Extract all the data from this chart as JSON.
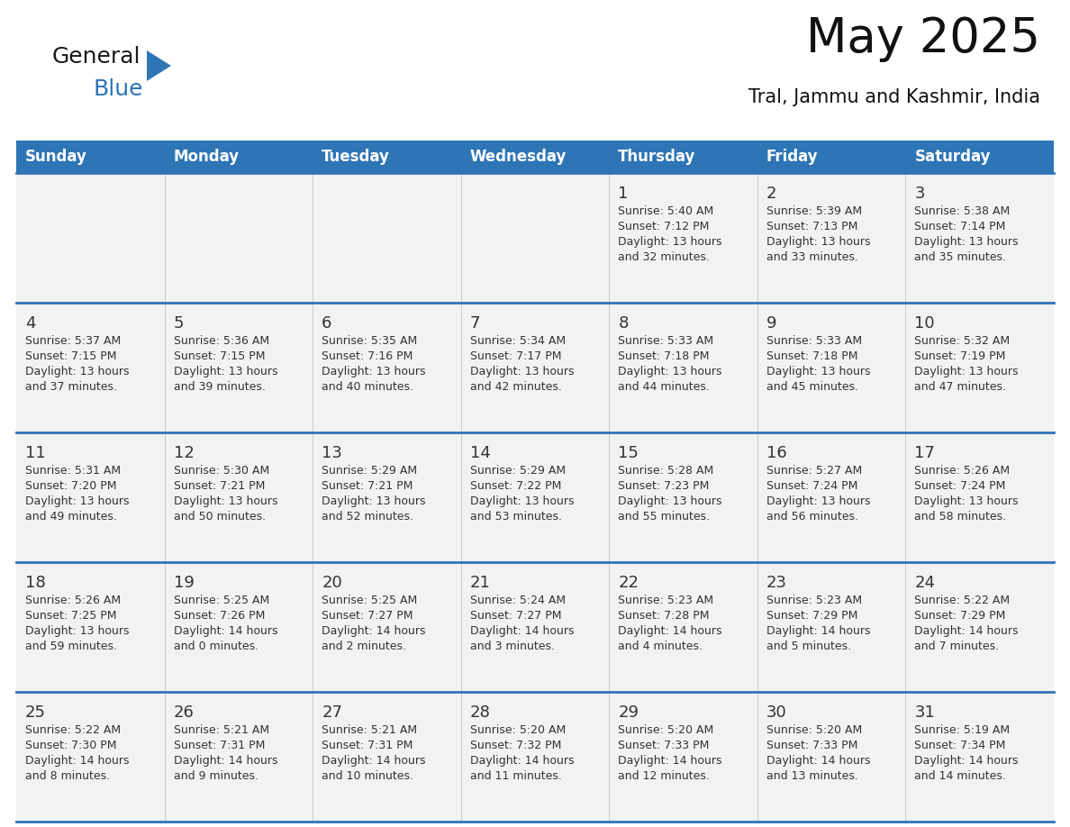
{
  "title": "May 2025",
  "subtitle": "Tral, Jammu and Kashmir, India",
  "days_of_week": [
    "Sunday",
    "Monday",
    "Tuesday",
    "Wednesday",
    "Thursday",
    "Friday",
    "Saturday"
  ],
  "header_bg": "#2E75B6",
  "header_text": "#FFFFFF",
  "cell_bg_odd": "#F2F2F2",
  "cell_bg_even": "#FFFFFF",
  "row_line_color": "#2E75B6",
  "text_color": "#333333",
  "logo_general_color": "#1a1a1a",
  "logo_blue_color": "#2E75B6",
  "logo_triangle_color": "#2E75B6",
  "title_fontsize": 38,
  "subtitle_fontsize": 15,
  "header_fontsize": 12,
  "day_num_fontsize": 13,
  "cell_fontsize": 9,
  "calendar_data": [
    [
      null,
      null,
      null,
      null,
      {
        "day": 1,
        "sunrise": "5:40 AM",
        "sunset": "7:12 PM",
        "daylight": "13 hours and 32 minutes."
      },
      {
        "day": 2,
        "sunrise": "5:39 AM",
        "sunset": "7:13 PM",
        "daylight": "13 hours and 33 minutes."
      },
      {
        "day": 3,
        "sunrise": "5:38 AM",
        "sunset": "7:14 PM",
        "daylight": "13 hours and 35 minutes."
      }
    ],
    [
      {
        "day": 4,
        "sunrise": "5:37 AM",
        "sunset": "7:15 PM",
        "daylight": "13 hours and 37 minutes."
      },
      {
        "day": 5,
        "sunrise": "5:36 AM",
        "sunset": "7:15 PM",
        "daylight": "13 hours and 39 minutes."
      },
      {
        "day": 6,
        "sunrise": "5:35 AM",
        "sunset": "7:16 PM",
        "daylight": "13 hours and 40 minutes."
      },
      {
        "day": 7,
        "sunrise": "5:34 AM",
        "sunset": "7:17 PM",
        "daylight": "13 hours and 42 minutes."
      },
      {
        "day": 8,
        "sunrise": "5:33 AM",
        "sunset": "7:18 PM",
        "daylight": "13 hours and 44 minutes."
      },
      {
        "day": 9,
        "sunrise": "5:33 AM",
        "sunset": "7:18 PM",
        "daylight": "13 hours and 45 minutes."
      },
      {
        "day": 10,
        "sunrise": "5:32 AM",
        "sunset": "7:19 PM",
        "daylight": "13 hours and 47 minutes."
      }
    ],
    [
      {
        "day": 11,
        "sunrise": "5:31 AM",
        "sunset": "7:20 PM",
        "daylight": "13 hours and 49 minutes."
      },
      {
        "day": 12,
        "sunrise": "5:30 AM",
        "sunset": "7:21 PM",
        "daylight": "13 hours and 50 minutes."
      },
      {
        "day": 13,
        "sunrise": "5:29 AM",
        "sunset": "7:21 PM",
        "daylight": "13 hours and 52 minutes."
      },
      {
        "day": 14,
        "sunrise": "5:29 AM",
        "sunset": "7:22 PM",
        "daylight": "13 hours and 53 minutes."
      },
      {
        "day": 15,
        "sunrise": "5:28 AM",
        "sunset": "7:23 PM",
        "daylight": "13 hours and 55 minutes."
      },
      {
        "day": 16,
        "sunrise": "5:27 AM",
        "sunset": "7:24 PM",
        "daylight": "13 hours and 56 minutes."
      },
      {
        "day": 17,
        "sunrise": "5:26 AM",
        "sunset": "7:24 PM",
        "daylight": "13 hours and 58 minutes."
      }
    ],
    [
      {
        "day": 18,
        "sunrise": "5:26 AM",
        "sunset": "7:25 PM",
        "daylight": "13 hours and 59 minutes."
      },
      {
        "day": 19,
        "sunrise": "5:25 AM",
        "sunset": "7:26 PM",
        "daylight": "14 hours and 0 minutes."
      },
      {
        "day": 20,
        "sunrise": "5:25 AM",
        "sunset": "7:27 PM",
        "daylight": "14 hours and 2 minutes."
      },
      {
        "day": 21,
        "sunrise": "5:24 AM",
        "sunset": "7:27 PM",
        "daylight": "14 hours and 3 minutes."
      },
      {
        "day": 22,
        "sunrise": "5:23 AM",
        "sunset": "7:28 PM",
        "daylight": "14 hours and 4 minutes."
      },
      {
        "day": 23,
        "sunrise": "5:23 AM",
        "sunset": "7:29 PM",
        "daylight": "14 hours and 5 minutes."
      },
      {
        "day": 24,
        "sunrise": "5:22 AM",
        "sunset": "7:29 PM",
        "daylight": "14 hours and 7 minutes."
      }
    ],
    [
      {
        "day": 25,
        "sunrise": "5:22 AM",
        "sunset": "7:30 PM",
        "daylight": "14 hours and 8 minutes."
      },
      {
        "day": 26,
        "sunrise": "5:21 AM",
        "sunset": "7:31 PM",
        "daylight": "14 hours and 9 minutes."
      },
      {
        "day": 27,
        "sunrise": "5:21 AM",
        "sunset": "7:31 PM",
        "daylight": "14 hours and 10 minutes."
      },
      {
        "day": 28,
        "sunrise": "5:20 AM",
        "sunset": "7:32 PM",
        "daylight": "14 hours and 11 minutes."
      },
      {
        "day": 29,
        "sunrise": "5:20 AM",
        "sunset": "7:33 PM",
        "daylight": "14 hours and 12 minutes."
      },
      {
        "day": 30,
        "sunrise": "5:20 AM",
        "sunset": "7:33 PM",
        "daylight": "14 hours and 13 minutes."
      },
      {
        "day": 31,
        "sunrise": "5:19 AM",
        "sunset": "7:34 PM",
        "daylight": "14 hours and 14 minutes."
      }
    ]
  ]
}
